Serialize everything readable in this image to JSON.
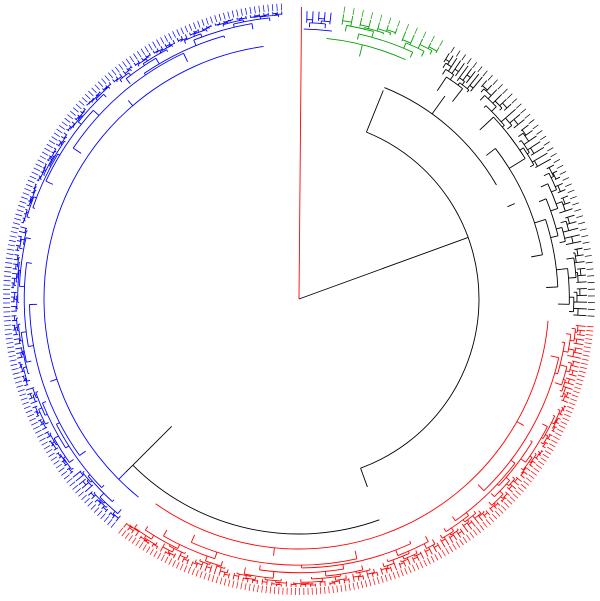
{
  "diagram": {
    "type": "circular-dendrogram",
    "clusters": [
      {
        "id": "red",
        "color": "#ff0000",
        "label_count": 150
      },
      {
        "id": "black",
        "color": "#000000",
        "label_count": 48
      },
      {
        "id": "green",
        "color": "#00a000",
        "label_count": 12
      },
      {
        "id": "blue",
        "color": "#0000ff",
        "label_count": 158
      }
    ],
    "branch_color": "#000000",
    "leaf_labels_note": ""
  }
}
